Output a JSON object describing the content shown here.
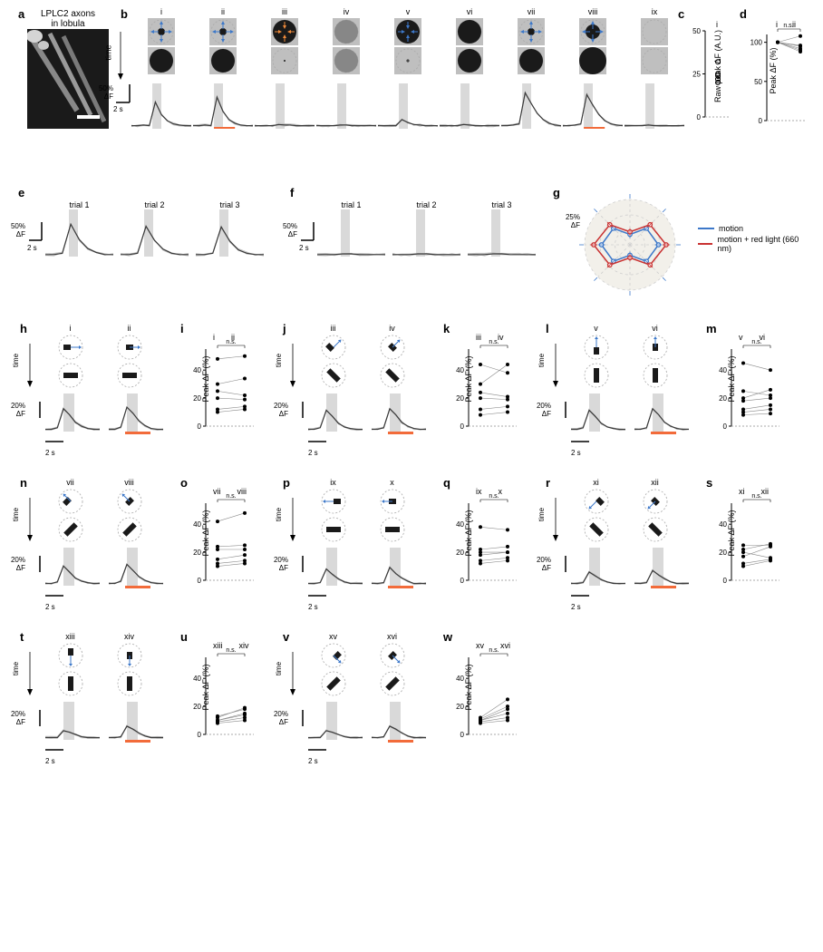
{
  "panel_a": {
    "label": "a",
    "title": "LPLC2 axons\nin lobula",
    "scalebar_color": "#ffffff"
  },
  "panel_b": {
    "label": "b",
    "roman": [
      "i",
      "ii",
      "iii",
      "iv",
      "v",
      "vi",
      "vii",
      "viii",
      "ix"
    ],
    "time_label": "time",
    "scale_y": "50%\nΔF",
    "scale_x": "2 s",
    "icon_colors": {
      "bg": "#bfbfbf",
      "ring": "#999",
      "circle_dark": "#1a1a1a",
      "circle_grey": "#878787",
      "arrow_blue": "#3d78c9",
      "arrow_orange": "#ef8a3a"
    },
    "trace_color_light": "#c0c0c0",
    "trace_color_main": "#3a3a3a",
    "band_color": "#d9d9d9",
    "red_bar_color": "#f26b3a",
    "red_bars_at": [
      1,
      7
    ],
    "traces": [
      [
        2,
        2,
        3,
        2,
        40,
        20,
        10,
        5,
        3,
        2,
        2
      ],
      [
        2,
        2,
        3,
        2,
        48,
        25,
        12,
        6,
        3,
        2,
        2
      ],
      [
        2,
        2,
        2,
        2,
        4,
        3,
        3,
        2,
        2,
        2,
        2
      ],
      [
        2,
        2,
        2,
        2,
        3,
        3,
        2,
        2,
        2,
        2,
        2
      ],
      [
        2,
        2,
        2,
        2,
        12,
        7,
        4,
        3,
        2,
        2,
        2
      ],
      [
        2,
        2,
        2,
        2,
        4,
        3,
        2,
        2,
        2,
        2,
        2
      ],
      [
        2,
        2,
        3,
        5,
        55,
        38,
        22,
        12,
        6,
        3,
        2
      ],
      [
        2,
        2,
        3,
        5,
        52,
        35,
        20,
        10,
        5,
        3,
        2
      ],
      [
        2,
        2,
        2,
        2,
        3,
        2,
        2,
        2,
        2,
        2,
        2
      ]
    ]
  },
  "panel_c": {
    "label": "c",
    "y_label": "Raw peak ΔF (A.U.)",
    "roman": "i",
    "ylim": [
      0,
      50
    ],
    "yticks": [
      0,
      25,
      50
    ],
    "points": [
      32,
      25,
      24,
      22,
      20
    ]
  },
  "panel_d": {
    "label": "d",
    "y_label": "Peak ΔF (%)",
    "roman": [
      "i",
      "ii"
    ],
    "ns": "n.s.",
    "ylim": [
      0,
      110
    ],
    "yticks": [
      0,
      50,
      100
    ],
    "pairs": [
      [
        100,
        96
      ],
      [
        100,
        92
      ],
      [
        100,
        108
      ],
      [
        100,
        90
      ],
      [
        100,
        88
      ],
      [
        100,
        95
      ]
    ]
  },
  "panels_ef": {
    "e": {
      "label": "e",
      "trials": [
        "trial 1",
        "trial 2",
        "trial 3"
      ],
      "scale_y": "50%\nΔF",
      "scale_x": "2 s",
      "traces": [
        [
          3,
          3,
          5,
          48,
          25,
          12,
          6,
          3,
          3
        ],
        [
          3,
          3,
          5,
          45,
          24,
          11,
          5,
          3,
          3
        ],
        [
          3,
          3,
          5,
          44,
          23,
          10,
          5,
          3,
          3
        ]
      ]
    },
    "f": {
      "label": "f",
      "trials": [
        "trial 1",
        "trial 2",
        "trial 3"
      ],
      "scale_y": "50%\nΔF",
      "scale_x": "2 s",
      "traces": [
        [
          3,
          3,
          3,
          4,
          4,
          3,
          3,
          3,
          3
        ],
        [
          3,
          3,
          3,
          4,
          4,
          3,
          3,
          3,
          3
        ],
        [
          3,
          3,
          3,
          4,
          4,
          3,
          3,
          3,
          3
        ]
      ]
    }
  },
  "panel_g": {
    "label": "g",
    "legend": [
      {
        "color": "#3d78c9",
        "text": "motion"
      },
      {
        "color": "#c93232",
        "text": "motion + red light (660 nm)"
      }
    ],
    "scale": "25%\nΔF",
    "angles": [
      0,
      45,
      90,
      135,
      180,
      225,
      270,
      315
    ],
    "motion": [
      22,
      18,
      8,
      18,
      22,
      18,
      8,
      18
    ],
    "redlight": [
      28,
      22,
      10,
      22,
      28,
      22,
      10,
      22
    ],
    "motion_color": "#3d78c9",
    "red_color": "#c93232",
    "bg": "#f2f0ea",
    "grid": "#cfcfcf",
    "max_r": 35
  },
  "bar_panels": {
    "scale_y": "20%\nΔF",
    "scale_x": "2 s",
    "time_label": "time",
    "ylim": [
      0,
      55
    ],
    "yticks": [
      0,
      20,
      40
    ],
    "ns": "n.s.",
    "y_label": "Peak ΔF (%)",
    "items": [
      {
        "trace_label": "h",
        "dot_label": "i",
        "roman": [
          "i",
          "ii"
        ],
        "arrow_dir": [
          0,
          0
        ],
        "bar_angle": [
          0,
          0
        ],
        "bar_start": [
          "L",
          "C"
        ],
        "traces": [
          [
            3,
            3,
            5,
            30,
            22,
            12,
            7,
            4,
            3,
            3
          ],
          [
            3,
            3,
            6,
            32,
            24,
            14,
            8,
            4,
            3,
            3
          ]
        ],
        "pairs": [
          [
            48,
            50
          ],
          [
            30,
            34
          ],
          [
            25,
            22
          ],
          [
            20,
            19
          ],
          [
            12,
            14
          ],
          [
            10,
            12
          ]
        ]
      },
      {
        "trace_label": "j",
        "dot_label": "k",
        "roman": [
          "iii",
          "iv"
        ],
        "arrow_dir": [
          45,
          45
        ],
        "bar_angle": [
          45,
          45
        ],
        "bar_start": [
          "L",
          "C"
        ],
        "traces": [
          [
            3,
            3,
            5,
            28,
            20,
            11,
            6,
            4,
            3,
            3
          ],
          [
            3,
            3,
            5,
            30,
            22,
            12,
            7,
            4,
            3,
            3
          ]
        ],
        "pairs": [
          [
            44,
            38
          ],
          [
            30,
            44
          ],
          [
            24,
            21
          ],
          [
            20,
            19
          ],
          [
            12,
            14
          ],
          [
            8,
            10
          ]
        ]
      },
      {
        "trace_label": "l",
        "dot_label": "m",
        "roman": [
          "v",
          "vi"
        ],
        "arrow_dir": [
          90,
          90
        ],
        "bar_angle": [
          90,
          90
        ],
        "bar_start": [
          "B",
          "C"
        ],
        "traces": [
          [
            3,
            3,
            5,
            28,
            20,
            11,
            6,
            4,
            3,
            3
          ],
          [
            3,
            3,
            5,
            30,
            22,
            12,
            7,
            4,
            3,
            3
          ]
        ],
        "pairs": [
          [
            45,
            40
          ],
          [
            25,
            22
          ],
          [
            20,
            26
          ],
          [
            18,
            20
          ],
          [
            12,
            15
          ],
          [
            10,
            12
          ],
          [
            8,
            9
          ]
        ]
      },
      {
        "trace_label": "n",
        "dot_label": "o",
        "roman": [
          "vii",
          "viii"
        ],
        "arrow_dir": [
          135,
          135
        ],
        "bar_angle": [
          135,
          135
        ],
        "bar_start": [
          "L",
          "C"
        ],
        "traces": [
          [
            3,
            3,
            5,
            26,
            18,
            10,
            6,
            4,
            3,
            3
          ],
          [
            3,
            3,
            6,
            28,
            20,
            12,
            7,
            4,
            3,
            3
          ]
        ],
        "pairs": [
          [
            42,
            48
          ],
          [
            24,
            25
          ],
          [
            22,
            22
          ],
          [
            15,
            18
          ],
          [
            12,
            14
          ],
          [
            10,
            12
          ]
        ]
      },
      {
        "trace_label": "p",
        "dot_label": "q",
        "roman": [
          "ix",
          "x"
        ],
        "arrow_dir": [
          180,
          180
        ],
        "bar_angle": [
          0,
          0
        ],
        "bar_start": [
          "R",
          "C"
        ],
        "traces": [
          [
            3,
            3,
            4,
            22,
            15,
            9,
            5,
            3,
            3,
            3
          ],
          [
            3,
            3,
            4,
            24,
            16,
            10,
            6,
            3,
            3,
            3
          ]
        ],
        "pairs": [
          [
            38,
            36
          ],
          [
            22,
            24
          ],
          [
            20,
            20
          ],
          [
            18,
            20
          ],
          [
            14,
            16
          ],
          [
            12,
            14
          ]
        ]
      },
      {
        "trace_label": "r",
        "dot_label": "s",
        "roman": [
          "xi",
          "xii"
        ],
        "arrow_dir": [
          225,
          225
        ],
        "bar_angle": [
          45,
          45
        ],
        "bar_start": [
          "R",
          "C"
        ],
        "traces": [
          [
            3,
            3,
            4,
            18,
            13,
            8,
            5,
            3,
            3,
            3
          ],
          [
            3,
            3,
            4,
            20,
            14,
            9,
            5,
            3,
            3,
            3
          ]
        ],
        "pairs": [
          [
            25,
            25
          ],
          [
            22,
            26
          ],
          [
            20,
            16
          ],
          [
            17,
            24
          ],
          [
            12,
            15
          ],
          [
            10,
            14
          ]
        ]
      },
      {
        "trace_label": "t",
        "dot_label": "u",
        "roman": [
          "xiii",
          "xiv"
        ],
        "arrow_dir": [
          270,
          270
        ],
        "bar_angle": [
          90,
          90
        ],
        "bar_start": [
          "T",
          "C"
        ],
        "traces": [
          [
            3,
            3,
            3,
            12,
            10,
            7,
            4,
            3,
            3,
            3
          ],
          [
            3,
            3,
            4,
            18,
            14,
            9,
            5,
            3,
            3,
            3
          ]
        ],
        "pairs": [
          [
            13,
            18
          ],
          [
            12,
            19
          ],
          [
            10,
            14
          ],
          [
            10,
            15
          ],
          [
            9,
            12
          ],
          [
            8,
            10
          ]
        ]
      },
      {
        "trace_label": "v",
        "dot_label": "w",
        "roman": [
          "xv",
          "xvi"
        ],
        "arrow_dir": [
          315,
          315
        ],
        "bar_angle": [
          135,
          135
        ],
        "bar_start": [
          "R",
          "C"
        ],
        "traces": [
          [
            3,
            3,
            3,
            12,
            10,
            7,
            4,
            3,
            3,
            3
          ],
          [
            3,
            3,
            4,
            18,
            14,
            9,
            5,
            3,
            3,
            3
          ]
        ],
        "pairs": [
          [
            12,
            25
          ],
          [
            11,
            20
          ],
          [
            10,
            18
          ],
          [
            10,
            15
          ],
          [
            9,
            12
          ],
          [
            8,
            10
          ]
        ]
      }
    ]
  }
}
